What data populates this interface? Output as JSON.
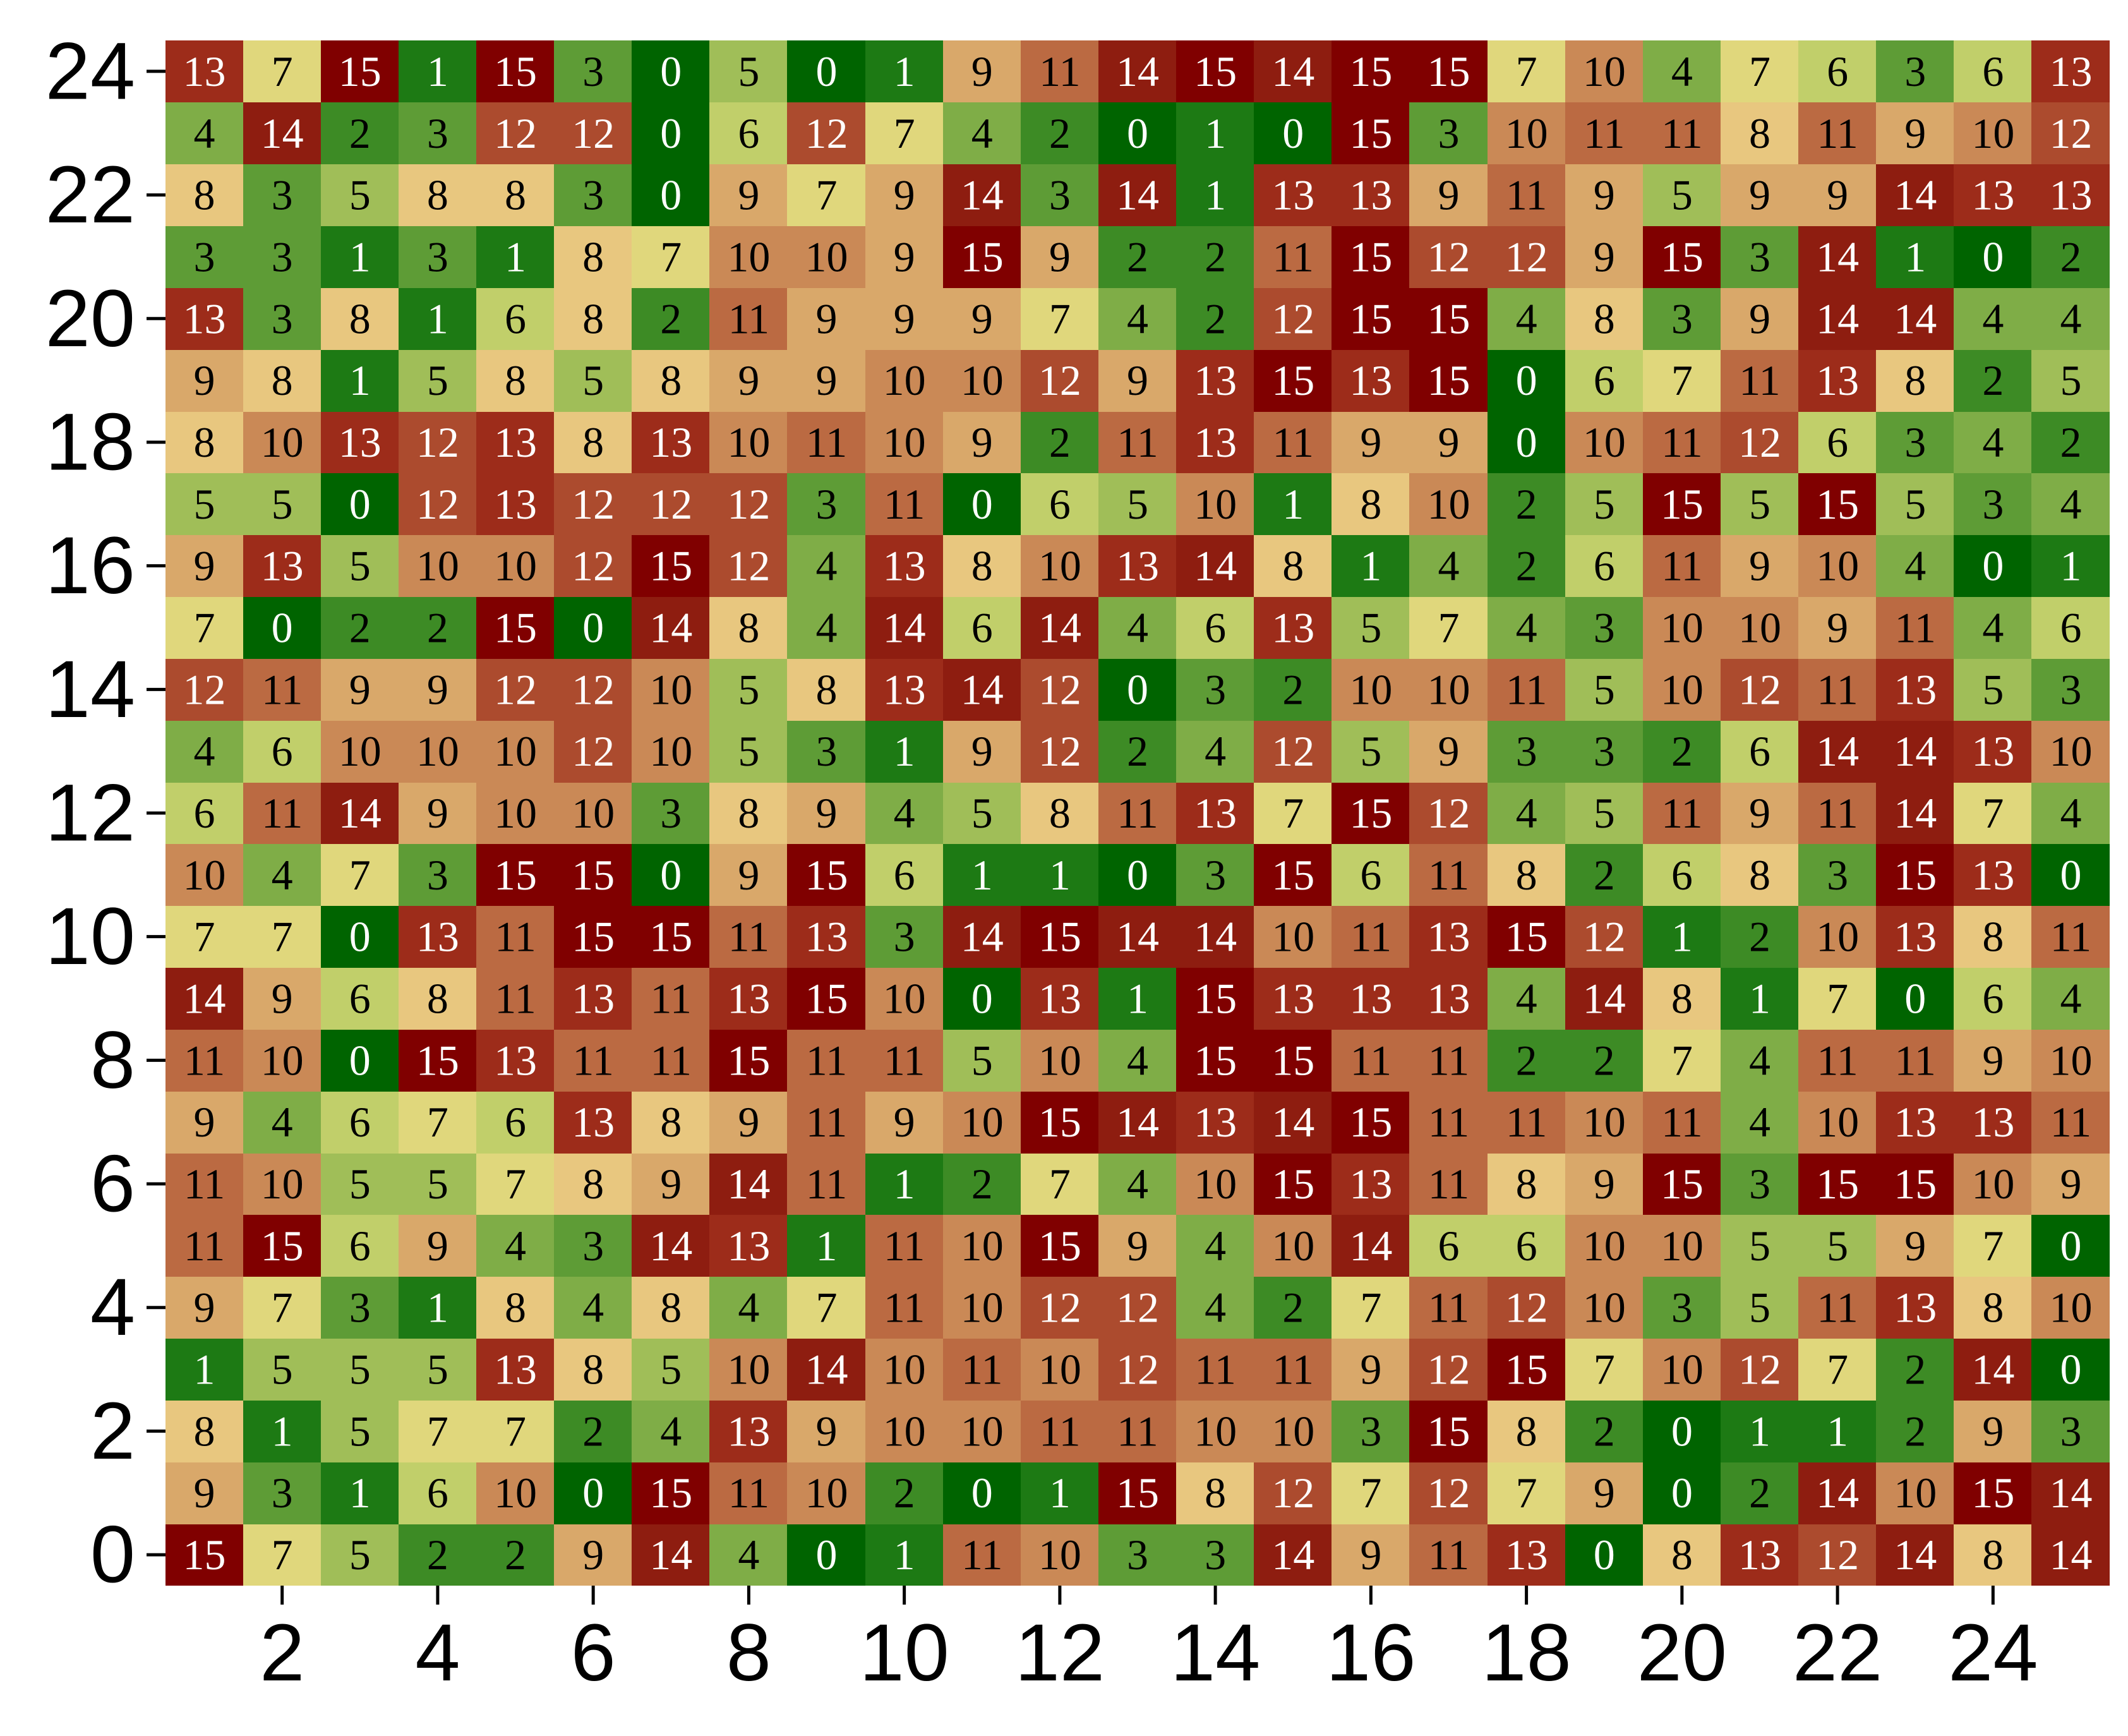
{
  "chart_data": {
    "type": "heatmap",
    "title": "",
    "xlabel": "",
    "ylabel": "",
    "x": [
      1,
      2,
      3,
      4,
      5,
      6,
      7,
      8,
      9,
      10,
      11,
      12,
      13,
      14,
      15,
      16,
      17,
      18,
      19,
      20,
      21,
      22,
      23,
      24,
      25
    ],
    "y": [
      0,
      1,
      2,
      3,
      4,
      5,
      6,
      7,
      8,
      9,
      10,
      11,
      12,
      13,
      14,
      15,
      16,
      17,
      18,
      19,
      20,
      21,
      22,
      23,
      24
    ],
    "x_ticks": [
      2,
      4,
      6,
      8,
      10,
      12,
      14,
      16,
      18,
      20,
      22,
      24
    ],
    "y_ticks": [
      0,
      2,
      4,
      6,
      8,
      10,
      12,
      14,
      16,
      18,
      20,
      22,
      24
    ],
    "value_range": [
      0,
      15
    ],
    "colorscale": [
      "#006400",
      "#1d7a14",
      "#3d8b25",
      "#5e9c36",
      "#7fad47",
      "#a0be58",
      "#c1cf6a",
      "#e0d77c",
      "#e8c77f",
      "#d9a86a",
      "#ca8956",
      "#bb6a42",
      "#ac4b2e",
      "#9d2c1a",
      "#8e1d10",
      "#800000"
    ],
    "grid": false,
    "legend": "none",
    "rows": [
      [
        15,
        7,
        5,
        2,
        2,
        9,
        14,
        4,
        0,
        1,
        11,
        10,
        3,
        3,
        14,
        9,
        11,
        13,
        0,
        8,
        13,
        12,
        14,
        8,
        14
      ],
      [
        9,
        3,
        1,
        6,
        10,
        0,
        15,
        11,
        10,
        2,
        0,
        1,
        15,
        8,
        12,
        7,
        12,
        7,
        9,
        0,
        2,
        14,
        10,
        15,
        14
      ],
      [
        8,
        1,
        5,
        7,
        7,
        2,
        4,
        13,
        9,
        10,
        10,
        11,
        11,
        10,
        10,
        3,
        15,
        8,
        2,
        0,
        1,
        1,
        2,
        9,
        3
      ],
      [
        1,
        5,
        5,
        5,
        13,
        8,
        5,
        10,
        14,
        10,
        11,
        10,
        12,
        11,
        11,
        9,
        12,
        15,
        7,
        10,
        12,
        7,
        2,
        14,
        0
      ],
      [
        9,
        7,
        3,
        1,
        8,
        4,
        8,
        4,
        7,
        11,
        10,
        12,
        12,
        4,
        2,
        7,
        11,
        12,
        10,
        3,
        5,
        11,
        13,
        8,
        10
      ],
      [
        11,
        15,
        6,
        9,
        4,
        3,
        14,
        13,
        1,
        11,
        10,
        15,
        9,
        4,
        10,
        14,
        6,
        6,
        10,
        10,
        5,
        5,
        9,
        7,
        0
      ],
      [
        11,
        10,
        5,
        5,
        7,
        8,
        9,
        14,
        11,
        1,
        2,
        7,
        4,
        10,
        15,
        13,
        11,
        8,
        9,
        15,
        3,
        15,
        15,
        10,
        9
      ],
      [
        9,
        4,
        6,
        7,
        6,
        13,
        8,
        9,
        11,
        9,
        10,
        15,
        14,
        13,
        14,
        15,
        11,
        11,
        10,
        11,
        4,
        10,
        13,
        13,
        11
      ],
      [
        11,
        10,
        0,
        15,
        13,
        11,
        11,
        15,
        11,
        11,
        5,
        10,
        4,
        15,
        15,
        11,
        11,
        2,
        2,
        7,
        4,
        11,
        11,
        9,
        10
      ],
      [
        14,
        9,
        6,
        8,
        11,
        13,
        11,
        13,
        15,
        10,
        0,
        13,
        1,
        15,
        13,
        13,
        13,
        4,
        14,
        8,
        1,
        7,
        0,
        6,
        4
      ],
      [
        7,
        7,
        0,
        13,
        11,
        15,
        15,
        11,
        13,
        3,
        14,
        15,
        14,
        14,
        10,
        11,
        13,
        15,
        12,
        1,
        2,
        10,
        13,
        8,
        11
      ],
      [
        10,
        4,
        7,
        3,
        15,
        15,
        0,
        9,
        15,
        6,
        1,
        1,
        0,
        3,
        15,
        6,
        11,
        8,
        2,
        6,
        8,
        3,
        15,
        13,
        0
      ],
      [
        6,
        11,
        14,
        9,
        10,
        10,
        3,
        8,
        9,
        4,
        5,
        8,
        11,
        13,
        7,
        15,
        12,
        4,
        5,
        11,
        9,
        11,
        14,
        7,
        4
      ],
      [
        4,
        6,
        10,
        10,
        10,
        12,
        10,
        5,
        3,
        1,
        9,
        12,
        2,
        4,
        12,
        5,
        9,
        3,
        3,
        2,
        6,
        14,
        14,
        13,
        10
      ],
      [
        12,
        11,
        9,
        9,
        12,
        12,
        10,
        5,
        8,
        13,
        14,
        12,
        0,
        3,
        2,
        10,
        10,
        11,
        5,
        10,
        12,
        11,
        13,
        5,
        3
      ],
      [
        7,
        0,
        2,
        2,
        15,
        0,
        14,
        8,
        4,
        14,
        6,
        14,
        4,
        6,
        13,
        5,
        7,
        4,
        3,
        10,
        10,
        9,
        11,
        4,
        6
      ],
      [
        9,
        13,
        5,
        10,
        10,
        12,
        15,
        12,
        4,
        13,
        8,
        10,
        13,
        14,
        8,
        1,
        4,
        2,
        6,
        11,
        9,
        10,
        4,
        0,
        1
      ],
      [
        5,
        5,
        0,
        12,
        13,
        12,
        12,
        12,
        3,
        11,
        0,
        6,
        5,
        10,
        1,
        8,
        10,
        2,
        5,
        15,
        5,
        15,
        5,
        3,
        4
      ],
      [
        8,
        10,
        13,
        12,
        13,
        8,
        13,
        10,
        11,
        10,
        9,
        2,
        11,
        13,
        11,
        9,
        9,
        0,
        10,
        11,
        12,
        6,
        3,
        4,
        2
      ],
      [
        9,
        8,
        1,
        5,
        8,
        5,
        8,
        9,
        9,
        10,
        10,
        12,
        9,
        13,
        15,
        13,
        15,
        0,
        6,
        7,
        11,
        13,
        8,
        2,
        5
      ],
      [
        13,
        3,
        8,
        1,
        6,
        8,
        2,
        11,
        9,
        9,
        9,
        7,
        4,
        2,
        12,
        15,
        15,
        4,
        8,
        3,
        9,
        14,
        14,
        4,
        4
      ],
      [
        3,
        3,
        1,
        3,
        1,
        8,
        7,
        10,
        10,
        9,
        15,
        9,
        2,
        2,
        11,
        15,
        12,
        12,
        9,
        15,
        3,
        14,
        1,
        0,
        2
      ],
      [
        8,
        3,
        5,
        8,
        8,
        3,
        0,
        9,
        7,
        9,
        14,
        3,
        14,
        1,
        13,
        13,
        9,
        11,
        9,
        5,
        9,
        9,
        14,
        13,
        13
      ],
      [
        4,
        14,
        2,
        3,
        12,
        12,
        0,
        6,
        12,
        7,
        4,
        2,
        0,
        1,
        0,
        15,
        3,
        10,
        11,
        11,
        8,
        11,
        9,
        10,
        12
      ],
      [
        13,
        7,
        15,
        1,
        15,
        3,
        0,
        5,
        0,
        1,
        9,
        11,
        14,
        15,
        14,
        15,
        15,
        7,
        10,
        4,
        7,
        6,
        3,
        6,
        13
      ]
    ]
  }
}
